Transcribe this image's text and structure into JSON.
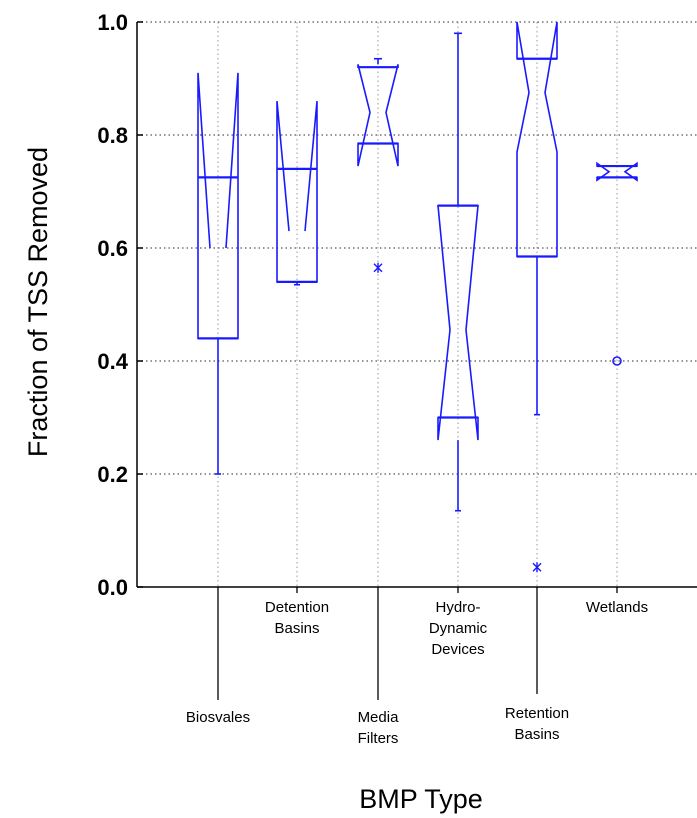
{
  "chart_data": {
    "type": "boxplot",
    "notched": true,
    "title": "",
    "xlabel": "BMP Type",
    "ylabel": "Fraction of TSS Removed",
    "ylim": [
      0.0,
      1.0
    ],
    "yticks": [
      "0.0",
      "0.2",
      "0.4",
      "0.6",
      "0.8",
      "1.0"
    ],
    "grid": true,
    "colors": {
      "box": "#1a1aff",
      "axis": "#000000",
      "grid": "#555555"
    },
    "categories": [
      "Biosvales",
      "Detention Basins",
      "Media Filters",
      "Hydro-Dynamic Devices",
      "Retention Basins",
      "Wetlands"
    ],
    "series": [
      {
        "category": "Biosvales",
        "whisker_low": 0.2,
        "q1": 0.44,
        "median": 0.6,
        "q3": 0.725,
        "whisker_high": 0.725,
        "notch_low": 0.91,
        "notch_high": 0.91,
        "outliers": []
      },
      {
        "category": "Detention Basins",
        "whisker_low": 0.535,
        "q1": 0.54,
        "median": 0.63,
        "q3": 0.74,
        "whisker_high": 0.75,
        "notch_low": 0.86,
        "notch_high": 0.86,
        "outliers": []
      },
      {
        "category": "Media Filters",
        "whisker_low": 0.745,
        "q1": 0.785,
        "median": 0.84,
        "q3": 0.92,
        "whisker_high": 0.935,
        "notch_low": 0.745,
        "notch_high": 0.925,
        "outliers": [
          0.565
        ]
      },
      {
        "category": "Hydro-Dynamic Devices",
        "whisker_low": 0.135,
        "q1": 0.3,
        "median": 0.455,
        "q3": 0.675,
        "whisker_high": 0.98,
        "notch_low": 0.26,
        "notch_high": 0.675,
        "outliers": []
      },
      {
        "category": "Retention Basins",
        "whisker_low": 0.305,
        "q1": 0.585,
        "median": 0.875,
        "q3": 0.935,
        "whisker_high": 0.99,
        "notch_low": 0.77,
        "notch_high": 1.0,
        "outliers": [
          0.035
        ]
      },
      {
        "category": "Wetlands",
        "whisker_low": 0.725,
        "q1": 0.725,
        "median": 0.735,
        "q3": 0.745,
        "whisker_high": 0.745,
        "notch_low": 0.72,
        "notch_high": 0.75,
        "outliers": [
          0.4
        ]
      }
    ]
  }
}
